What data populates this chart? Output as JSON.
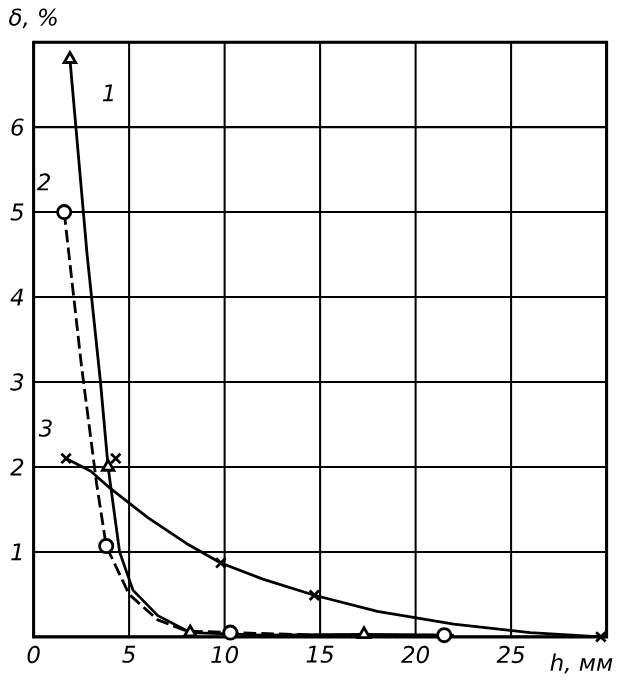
{
  "chart_data": {
    "type": "line",
    "xlabel": "h, мм",
    "ylabel": "δ, %",
    "xlim": [
      0,
      30
    ],
    "ylim": [
      0,
      7
    ],
    "xticks": [
      0,
      5,
      10,
      15,
      20,
      25,
      {
        "value": 30,
        "label": null
      }
    ],
    "yticks": [
      {
        "value": 0,
        "label": null
      },
      1,
      2,
      3,
      4,
      5,
      6,
      {
        "value": 7,
        "label": null
      }
    ],
    "grid": true,
    "series": [
      {
        "color": "#000000",
        "line_style": "solid",
        "marker": "none",
        "x": [
          1.9,
          2.8,
          3.5,
          3.9,
          4.5,
          5.2,
          6.5,
          8.2,
          12,
          17.3,
          22
        ],
        "values": [
          6.8,
          4.5,
          3.0,
          2.0,
          1.0,
          0.55,
          0.25,
          0.05,
          0.02,
          0.03,
          0.02
        ]
      },
      {
        "color": "#000000",
        "line_style": "dashed",
        "marker": "none",
        "x": [
          1.6,
          2.5,
          3.3,
          3.8,
          5,
          6.5,
          8,
          10.3,
          15,
          21.5
        ],
        "values": [
          5.0,
          3.2,
          1.8,
          1.07,
          0.5,
          0.2,
          0.07,
          0.05,
          0.02,
          0.02
        ]
      },
      {
        "color": "#000000",
        "line_style": "solid",
        "marker": "none",
        "x": [
          1.7,
          3,
          4,
          6,
          8,
          9.8,
          12,
          14.7,
          18,
          22,
          26,
          29.7
        ],
        "values": [
          2.1,
          1.95,
          1.75,
          1.4,
          1.1,
          0.87,
          0.68,
          0.49,
          0.3,
          0.15,
          0.05,
          0
        ]
      },
      {
        "type": "scatter",
        "color": "#000000",
        "marker": "triangle",
        "x": [
          1.9,
          3.9,
          8.2,
          17.3
        ],
        "values": [
          6.8,
          2.0,
          0.05,
          0.03
        ]
      },
      {
        "type": "scatter",
        "color": "#000000",
        "marker": "circle",
        "x": [
          1.6,
          3.8,
          10.3,
          21.5
        ],
        "values": [
          5.0,
          1.07,
          0.05,
          0.02
        ]
      },
      {
        "type": "scatter",
        "color": "#000000",
        "marker": "cross",
        "x": [
          1.7,
          4.3,
          9.8,
          14.7,
          29.7
        ],
        "values": [
          2.1,
          2.1,
          0.87,
          0.49,
          0
        ]
      }
    ],
    "annotations": [
      "1",
      "2",
      "3"
    ]
  }
}
